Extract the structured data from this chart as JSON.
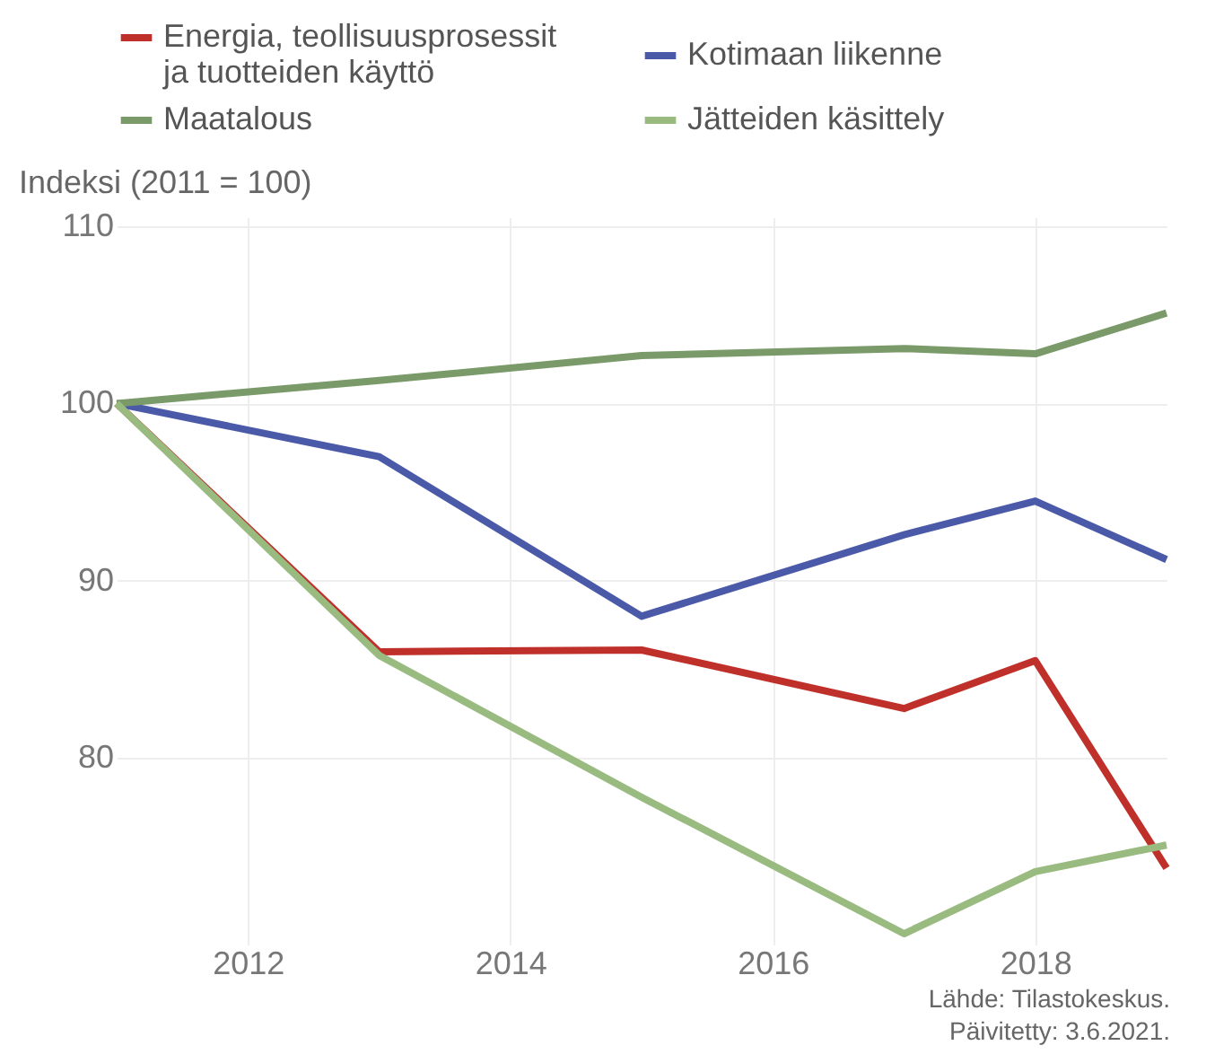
{
  "chart_data": {
    "type": "line",
    "ylabel": "Indeksi (2011 = 100)",
    "x": [
      2011,
      2013,
      2015,
      2017,
      2018,
      2019
    ],
    "series": [
      {
        "name": "Energia, teollisuusprosessit\nja tuotteiden käyttö",
        "color": "#c0302b",
        "values": [
          100,
          86.0,
          86.1,
          82.8,
          85.5,
          73.8
        ]
      },
      {
        "name": "Kotimaan liikenne",
        "color": "#4a5aa8",
        "values": [
          100,
          97.0,
          88.0,
          92.6,
          94.5,
          91.2
        ]
      },
      {
        "name": "Maatalous",
        "color": "#7a9a6a",
        "values": [
          100,
          101.3,
          102.7,
          103.1,
          102.8,
          105.1
        ]
      },
      {
        "name": "Jätteiden käsittely",
        "color": "#99bb80",
        "values": [
          100,
          85.8,
          77.8,
          70.1,
          73.6,
          75.1
        ]
      }
    ],
    "xlim": [
      2011,
      2019
    ],
    "xticks": [
      2012,
      2014,
      2016,
      2018
    ],
    "ylim": [
      70,
      110.5
    ],
    "yticks": [
      80,
      90,
      100,
      110
    ],
    "grid": true,
    "legend": "top",
    "marker": "none",
    "line_style": "solid",
    "annotations": [
      "Lähde: Tilastokeskus.",
      "Päivitetty: 3.6.2021."
    ]
  }
}
